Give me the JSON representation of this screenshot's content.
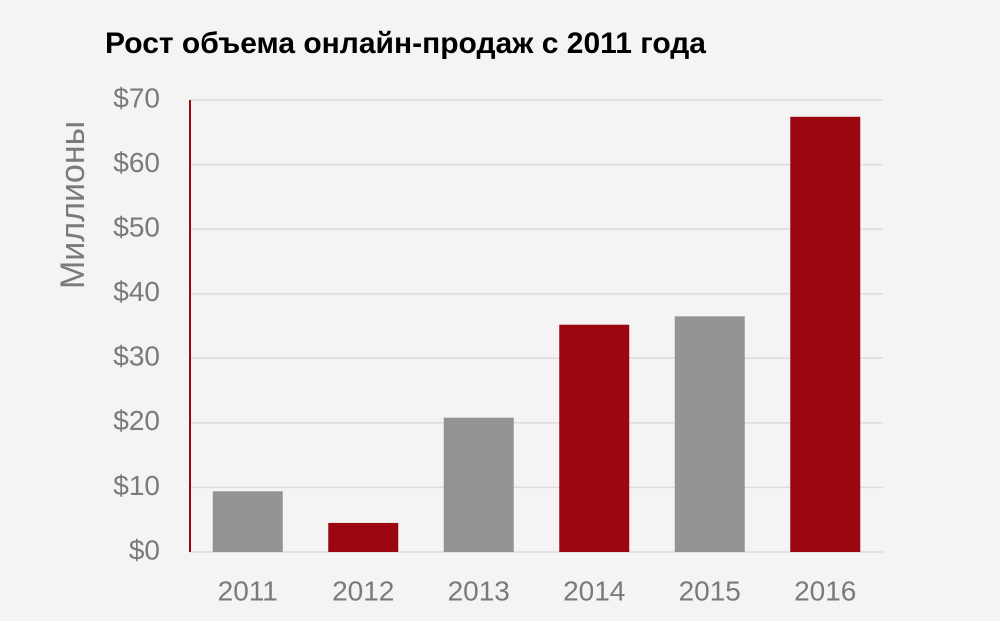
{
  "chart_data": {
    "type": "bar",
    "title": "Рост объема онлайн-продаж с 2011 года",
    "y_label": "Миллионы",
    "categories": [
      "2011",
      "2012",
      "2013",
      "2014",
      "2015",
      "2016"
    ],
    "values": [
      9.4,
      4.5,
      20.8,
      35.2,
      36.5,
      67.4
    ],
    "colors": [
      "#939393",
      "#9b0610",
      "#939393",
      "#9b0610",
      "#939393",
      "#9b0610"
    ],
    "ylim": [
      0,
      70
    ],
    "yticks": [
      {
        "value": 0,
        "label": "$0"
      },
      {
        "value": 10,
        "label": "$10"
      },
      {
        "value": 20,
        "label": "$20"
      },
      {
        "value": 30,
        "label": "$30"
      },
      {
        "value": 40,
        "label": "$40"
      },
      {
        "value": 50,
        "label": "$50"
      },
      {
        "value": 60,
        "label": "$60"
      },
      {
        "value": 70,
        "label": "$70"
      }
    ],
    "grid": true
  }
}
